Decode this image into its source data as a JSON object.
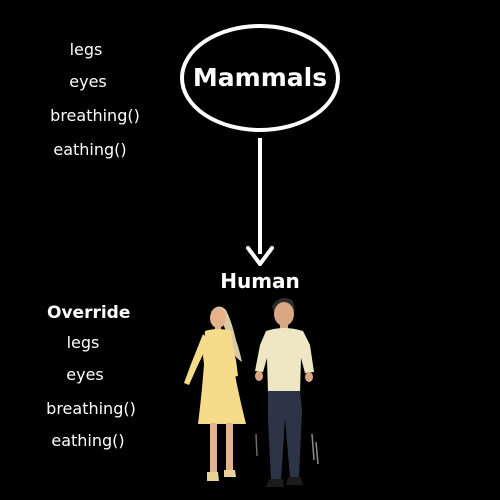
{
  "parent": {
    "title": "Mammals",
    "attributes": [
      "legs",
      "eyes",
      "breathing()",
      "eathing()"
    ]
  },
  "child": {
    "title": "Human",
    "section_label": "Override",
    "attributes": [
      "legs",
      "eyes",
      "breathing()",
      "eathing()"
    ]
  },
  "colors": {
    "background": "#000000",
    "foreground": "#ffffff",
    "woman_dress": "#f6dc8a",
    "man_shirt": "#efe7c3",
    "man_trousers": "#2c3445"
  },
  "illustration": {
    "icon": "couple-walking-illustration"
  }
}
